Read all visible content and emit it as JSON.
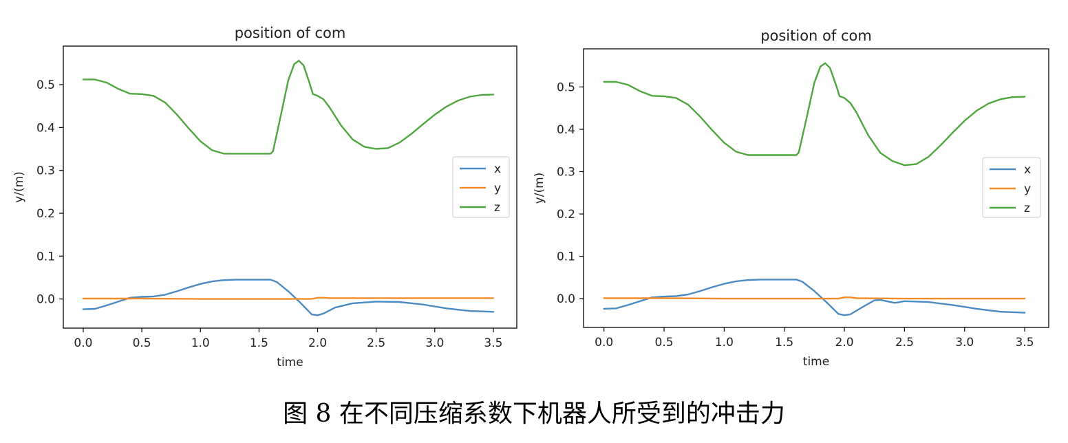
{
  "caption": "图 8 在不同压缩系数下机器人所受到的冲击力",
  "colors": {
    "x": "#4c8ac2",
    "y": "#f28c28",
    "z": "#4fa63f"
  },
  "chart_data": [
    {
      "type": "line",
      "title": "position of com",
      "xlabel": "time",
      "ylabel": "y/(m)",
      "xlim": [
        -0.17,
        3.7
      ],
      "ylim": [
        -0.068,
        0.59
      ],
      "xticks": [
        0.0,
        0.5,
        1.0,
        1.5,
        2.0,
        2.5,
        3.0,
        3.5
      ],
      "yticks": [
        0.0,
        0.1,
        0.2,
        0.3,
        0.4,
        0.5
      ],
      "legend_position": "center-right",
      "grid": false,
      "series": [
        {
          "name": "x",
          "color": "#4c8ac2",
          "points": [
            [
              0.0,
              -0.024
            ],
            [
              0.1,
              -0.023
            ],
            [
              0.2,
              -0.015
            ],
            [
              0.3,
              -0.006
            ],
            [
              0.4,
              0.003
            ],
            [
              0.5,
              0.005
            ],
            [
              0.6,
              0.006
            ],
            [
              0.7,
              0.01
            ],
            [
              0.8,
              0.018
            ],
            [
              0.9,
              0.027
            ],
            [
              1.0,
              0.035
            ],
            [
              1.1,
              0.041
            ],
            [
              1.2,
              0.044
            ],
            [
              1.3,
              0.045
            ],
            [
              1.4,
              0.045
            ],
            [
              1.5,
              0.045
            ],
            [
              1.6,
              0.045
            ],
            [
              1.65,
              0.04
            ],
            [
              1.75,
              0.018
            ],
            [
              1.85,
              -0.008
            ],
            [
              1.95,
              -0.036
            ],
            [
              2.0,
              -0.038
            ],
            [
              2.05,
              -0.034
            ],
            [
              2.15,
              -0.02
            ],
            [
              2.3,
              -0.01
            ],
            [
              2.5,
              -0.006
            ],
            [
              2.7,
              -0.007
            ],
            [
              2.9,
              -0.013
            ],
            [
              3.1,
              -0.022
            ],
            [
              3.3,
              -0.028
            ],
            [
              3.5,
              -0.03
            ]
          ]
        },
        {
          "name": "y",
          "color": "#f28c28",
          "points": [
            [
              0.0,
              0.001
            ],
            [
              0.5,
              0.001
            ],
            [
              1.0,
              0.0
            ],
            [
              1.5,
              0.0
            ],
            [
              1.95,
              0.0
            ],
            [
              2.0,
              0.003
            ],
            [
              2.05,
              0.003
            ],
            [
              2.1,
              0.002
            ],
            [
              2.5,
              0.002
            ],
            [
              3.0,
              0.002
            ],
            [
              3.5,
              0.002
            ]
          ]
        },
        {
          "name": "z",
          "color": "#4fa63f",
          "points": [
            [
              0.0,
              0.512
            ],
            [
              0.1,
              0.512
            ],
            [
              0.2,
              0.505
            ],
            [
              0.3,
              0.49
            ],
            [
              0.4,
              0.479
            ],
            [
              0.5,
              0.478
            ],
            [
              0.6,
              0.474
            ],
            [
              0.7,
              0.458
            ],
            [
              0.8,
              0.43
            ],
            [
              0.9,
              0.398
            ],
            [
              1.0,
              0.368
            ],
            [
              1.1,
              0.347
            ],
            [
              1.2,
              0.339
            ],
            [
              1.3,
              0.339
            ],
            [
              1.4,
              0.339
            ],
            [
              1.5,
              0.339
            ],
            [
              1.6,
              0.339
            ],
            [
              1.62,
              0.345
            ],
            [
              1.68,
              0.42
            ],
            [
              1.75,
              0.51
            ],
            [
              1.8,
              0.548
            ],
            [
              1.84,
              0.556
            ],
            [
              1.88,
              0.545
            ],
            [
              1.93,
              0.505
            ],
            [
              1.96,
              0.478
            ],
            [
              2.0,
              0.474
            ],
            [
              2.05,
              0.466
            ],
            [
              2.1,
              0.448
            ],
            [
              2.2,
              0.405
            ],
            [
              2.3,
              0.372
            ],
            [
              2.4,
              0.355
            ],
            [
              2.5,
              0.35
            ],
            [
              2.6,
              0.352
            ],
            [
              2.7,
              0.365
            ],
            [
              2.8,
              0.385
            ],
            [
              2.9,
              0.408
            ],
            [
              3.0,
              0.43
            ],
            [
              3.1,
              0.449
            ],
            [
              3.2,
              0.463
            ],
            [
              3.3,
              0.472
            ],
            [
              3.4,
              0.476
            ],
            [
              3.5,
              0.477
            ]
          ]
        }
      ]
    },
    {
      "type": "line",
      "title": "position of com",
      "xlabel": "time",
      "ylabel": "y/(m)",
      "xlim": [
        -0.17,
        3.7
      ],
      "ylim": [
        -0.068,
        0.59
      ],
      "xticks": [
        0.0,
        0.5,
        1.0,
        1.5,
        2.0,
        2.5,
        3.0,
        3.5
      ],
      "yticks": [
        0.0,
        0.1,
        0.2,
        0.3,
        0.4,
        0.5
      ],
      "legend_position": "center-right",
      "grid": false,
      "series": [
        {
          "name": "x",
          "color": "#4c8ac2",
          "points": [
            [
              0.0,
              -0.024
            ],
            [
              0.1,
              -0.023
            ],
            [
              0.2,
              -0.015
            ],
            [
              0.3,
              -0.006
            ],
            [
              0.4,
              0.003
            ],
            [
              0.5,
              0.005
            ],
            [
              0.6,
              0.006
            ],
            [
              0.7,
              0.01
            ],
            [
              0.8,
              0.018
            ],
            [
              0.9,
              0.027
            ],
            [
              1.0,
              0.035
            ],
            [
              1.1,
              0.041
            ],
            [
              1.2,
              0.044
            ],
            [
              1.3,
              0.045
            ],
            [
              1.4,
              0.045
            ],
            [
              1.5,
              0.045
            ],
            [
              1.6,
              0.045
            ],
            [
              1.65,
              0.04
            ],
            [
              1.75,
              0.018
            ],
            [
              1.85,
              -0.008
            ],
            [
              1.95,
              -0.036
            ],
            [
              2.0,
              -0.039
            ],
            [
              2.05,
              -0.037
            ],
            [
              2.15,
              -0.02
            ],
            [
              2.25,
              -0.004
            ],
            [
              2.3,
              -0.003
            ],
            [
              2.35,
              -0.006
            ],
            [
              2.42,
              -0.01
            ],
            [
              2.5,
              -0.006
            ],
            [
              2.7,
              -0.008
            ],
            [
              2.9,
              -0.015
            ],
            [
              3.1,
              -0.024
            ],
            [
              3.3,
              -0.031
            ],
            [
              3.5,
              -0.033
            ]
          ]
        },
        {
          "name": "y",
          "color": "#f28c28",
          "points": [
            [
              0.0,
              0.001
            ],
            [
              0.5,
              0.001
            ],
            [
              1.0,
              0.0
            ],
            [
              1.5,
              0.0
            ],
            [
              1.95,
              0.0
            ],
            [
              2.0,
              0.003
            ],
            [
              2.05,
              0.003
            ],
            [
              2.1,
              0.001
            ],
            [
              2.5,
              0.0
            ],
            [
              3.0,
              0.0
            ],
            [
              3.5,
              0.0
            ]
          ]
        },
        {
          "name": "z",
          "color": "#4fa63f",
          "points": [
            [
              0.0,
              0.512
            ],
            [
              0.1,
              0.512
            ],
            [
              0.2,
              0.505
            ],
            [
              0.3,
              0.49
            ],
            [
              0.4,
              0.479
            ],
            [
              0.5,
              0.478
            ],
            [
              0.6,
              0.474
            ],
            [
              0.7,
              0.458
            ],
            [
              0.8,
              0.43
            ],
            [
              0.9,
              0.398
            ],
            [
              1.0,
              0.368
            ],
            [
              1.1,
              0.347
            ],
            [
              1.2,
              0.339
            ],
            [
              1.3,
              0.339
            ],
            [
              1.4,
              0.339
            ],
            [
              1.5,
              0.339
            ],
            [
              1.6,
              0.339
            ],
            [
              1.62,
              0.345
            ],
            [
              1.68,
              0.42
            ],
            [
              1.75,
              0.51
            ],
            [
              1.8,
              0.548
            ],
            [
              1.84,
              0.556
            ],
            [
              1.88,
              0.545
            ],
            [
              1.93,
              0.505
            ],
            [
              1.96,
              0.478
            ],
            [
              2.0,
              0.474
            ],
            [
              2.05,
              0.462
            ],
            [
              2.1,
              0.44
            ],
            [
              2.2,
              0.385
            ],
            [
              2.3,
              0.344
            ],
            [
              2.4,
              0.325
            ],
            [
              2.5,
              0.315
            ],
            [
              2.6,
              0.318
            ],
            [
              2.7,
              0.335
            ],
            [
              2.8,
              0.362
            ],
            [
              2.9,
              0.392
            ],
            [
              3.0,
              0.42
            ],
            [
              3.1,
              0.444
            ],
            [
              3.2,
              0.461
            ],
            [
              3.3,
              0.471
            ],
            [
              3.4,
              0.476
            ],
            [
              3.5,
              0.477
            ]
          ]
        }
      ]
    }
  ]
}
